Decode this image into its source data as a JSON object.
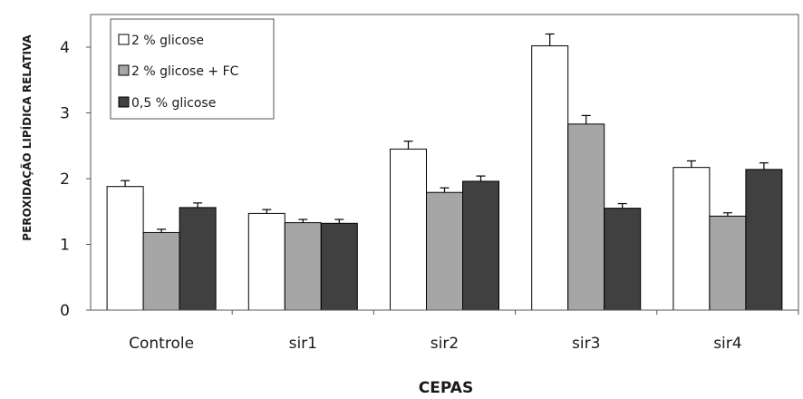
{
  "chart_data": {
    "type": "bar",
    "categories": [
      "Controle",
      "sir1",
      "sir2",
      "sir3",
      "sir4"
    ],
    "series": [
      {
        "name": "2 % glicose",
        "color": "#ffffff",
        "values": [
          1.88,
          1.47,
          2.45,
          4.02,
          2.17
        ],
        "errors": [
          0.09,
          0.06,
          0.12,
          0.18,
          0.1
        ]
      },
      {
        "name": "2 % glicose + FC",
        "color": "#a6a6a6",
        "values": [
          1.18,
          1.33,
          1.79,
          2.83,
          1.43
        ],
        "errors": [
          0.05,
          0.05,
          0.07,
          0.13,
          0.05
        ]
      },
      {
        "name": "0,5 % glicose",
        "color": "#404040",
        "values": [
          1.56,
          1.32,
          1.96,
          1.55,
          2.14
        ],
        "errors": [
          0.07,
          0.06,
          0.08,
          0.07,
          0.1
        ]
      }
    ],
    "title": "",
    "xlabel": "CEPAS",
    "ylabel": "PEROXIDAÇÃO LIPÍDICA RELATIVA",
    "ylim": [
      0,
      4.5
    ],
    "yticks": [
      "0",
      "1",
      "2",
      "3",
      "4"
    ],
    "grid": false,
    "legend_position": "top-left"
  }
}
